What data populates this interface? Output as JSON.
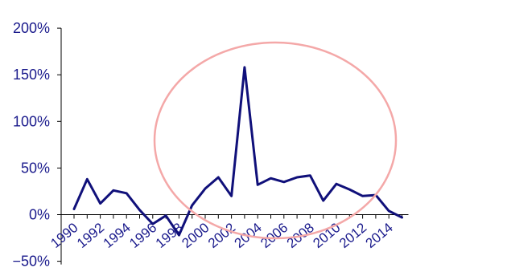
{
  "chart_data": {
    "type": "line",
    "title": "",
    "xlabel": "",
    "ylabel": "",
    "x": [
      1990,
      1991,
      1992,
      1993,
      1994,
      1995,
      1996,
      1997,
      1998,
      1999,
      2000,
      2001,
      2002,
      2003,
      2004,
      2005,
      2006,
      2007,
      2008,
      2009,
      2010,
      2011,
      2012,
      2013,
      2014,
      2015
    ],
    "series": [
      {
        "color": "#10107a",
        "values": [
          6,
          38,
          12,
          26,
          23,
          5,
          -10,
          -1,
          -22,
          10,
          28,
          40,
          20,
          158,
          32,
          39,
          35,
          40,
          42,
          15,
          33,
          27,
          20,
          21,
          4,
          -3
        ]
      }
    ],
    "ylim": [
      -50,
      200
    ],
    "yticks": [
      -50,
      0,
      50,
      100,
      150,
      200
    ],
    "ytick_labels": [
      "−50%",
      "0%",
      "50%",
      "100%",
      "150%",
      "200%"
    ],
    "xtick_labels": [
      "1990",
      "1992",
      "1994",
      "1996",
      "1998",
      "2000",
      "2002",
      "2004",
      "2006",
      "2008",
      "2010",
      "2012",
      "2014"
    ],
    "annotation_color": "#f4a8a8",
    "text_color": "#1a1a8c",
    "grid": false,
    "legend": "none"
  }
}
